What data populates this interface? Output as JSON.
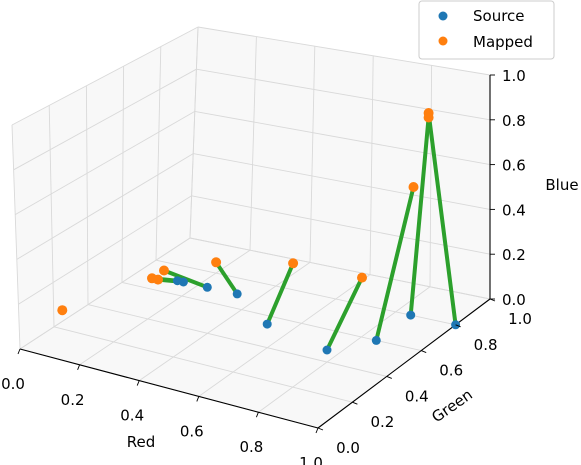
{
  "chart_data": {
    "type": "scatter",
    "title": "",
    "axes": {
      "x": {
        "label": "Red",
        "range": [
          0,
          1
        ],
        "ticks": [
          "0.0",
          "0.2",
          "0.4",
          "0.6",
          "0.8",
          "1.0"
        ]
      },
      "y": {
        "label": "Green",
        "range": [
          0,
          1
        ],
        "ticks": [
          "0.0",
          "0.2",
          "0.4",
          "0.6",
          "0.8",
          "1.0"
        ]
      },
      "z": {
        "label": "Blue",
        "range": [
          0,
          1
        ],
        "ticks": [
          "0.0",
          "0.2",
          "0.4",
          "0.6",
          "0.8",
          "1.0"
        ]
      }
    },
    "grid": true,
    "legend": {
      "placement": "top-right"
    },
    "series": [
      {
        "name": "Source",
        "color": "#1f77b4"
      },
      {
        "name": "Mapped",
        "color": "#ff7f0e"
      }
    ],
    "connector_color": "#2ca02c",
    "pairs": [
      {
        "source": [
          0.0,
          0.25,
          0.05
        ],
        "mapped": [
          0.0,
          0.25,
          0.05
        ]
      },
      {
        "source": [
          0.3,
          0.4,
          0.2
        ],
        "mapped": [
          0.1,
          0.6,
          0.05
        ]
      },
      {
        "source": [
          0.32,
          0.4,
          0.2
        ],
        "mapped": [
          0.12,
          0.6,
          0.05
        ]
      },
      {
        "source": [
          0.4,
          0.4,
          0.2
        ],
        "mapped": [
          0.1,
          0.67,
          0.05
        ]
      },
      {
        "source": [
          0.5,
          0.4,
          0.2
        ],
        "mapped": [
          0.2,
          0.8,
          0.05
        ]
      },
      {
        "source": [
          0.6,
          0.4,
          0.1
        ],
        "mapped": [
          0.4,
          0.9,
          0.05
        ]
      },
      {
        "source": [
          0.8,
          0.4,
          0.05
        ],
        "mapped": [
          0.63,
          0.9,
          0.05
        ]
      },
      {
        "source": [
          0.85,
          0.6,
          0.0
        ],
        "mapped": [
          0.8,
          0.9,
          0.5
        ]
      },
      {
        "source": [
          0.85,
          0.8,
          0.0
        ],
        "mapped": [
          0.85,
          0.9,
          0.82
        ]
      },
      {
        "source": [
          1.0,
          0.8,
          0.0
        ],
        "mapped": [
          0.85,
          0.9,
          0.84
        ]
      }
    ]
  }
}
